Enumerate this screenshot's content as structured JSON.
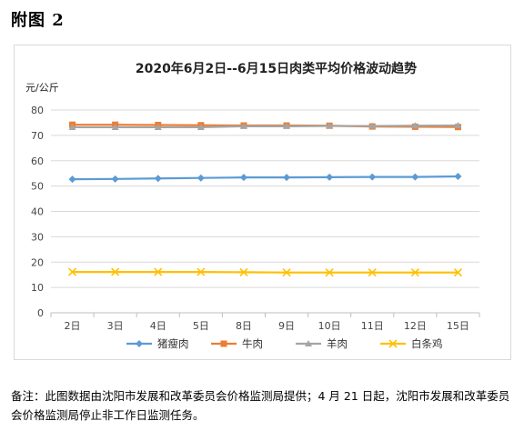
{
  "figure_label": "附图 2",
  "note": "备注：此图数据由沈阳市发展和改革委员会价格监测局提供；4 月 21 日起，沈阳市发展和改革委员会价格监测局停止非工作日监测任务。",
  "chart_data": {
    "type": "line",
    "title": "2020年6月2日--6月15日肉类平均价格波动趋势",
    "ylabel": "元/公斤",
    "xlabel": "",
    "categories": [
      "2日",
      "3日",
      "4日",
      "5日",
      "8日",
      "9日",
      "10日",
      "11日",
      "12日",
      "15日"
    ],
    "ylim": [
      0,
      80
    ],
    "yticks": [
      0,
      10,
      20,
      30,
      40,
      50,
      60,
      70,
      80
    ],
    "grid": true,
    "legend_position": "bottom",
    "series": [
      {
        "name": "猪瘦肉",
        "color": "#5b9bd5",
        "marker": "diamond",
        "values": [
          52.7,
          52.8,
          53.0,
          53.2,
          53.4,
          53.4,
          53.5,
          53.6,
          53.6,
          53.8
        ]
      },
      {
        "name": "牛肉",
        "color": "#ed7d31",
        "marker": "square",
        "values": [
          74.2,
          74.2,
          74.1,
          74.0,
          73.9,
          73.9,
          73.8,
          73.5,
          73.4,
          73.3
        ]
      },
      {
        "name": "羊肉",
        "color": "#a5a5a5",
        "marker": "triangle",
        "values": [
          73.2,
          73.2,
          73.2,
          73.2,
          73.6,
          73.6,
          73.7,
          73.7,
          73.8,
          73.9
        ]
      },
      {
        "name": "白条鸡",
        "color": "#ffc000",
        "marker": "x",
        "values": [
          16.1,
          16.1,
          16.1,
          16.1,
          16.0,
          15.9,
          15.9,
          15.9,
          15.9,
          15.9
        ]
      }
    ]
  }
}
